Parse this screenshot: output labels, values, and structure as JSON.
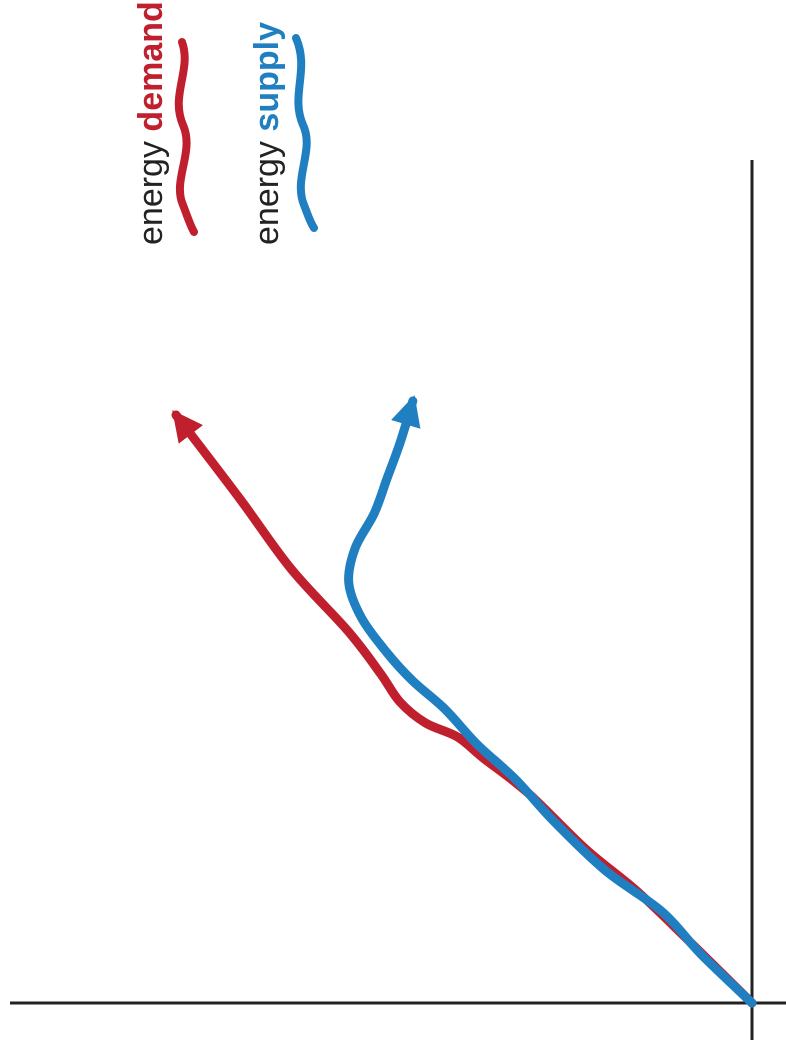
{
  "chart_data": {
    "type": "line",
    "title": "",
    "xlabel": "",
    "ylabel": "",
    "grid": false,
    "legend_placement": "top-left",
    "series": [
      {
        "name_prefix": "energy",
        "name_emphasis": "demand",
        "color": "#c0202e",
        "arrow": true,
        "points": [
          [
            0.0,
            0.0
          ],
          [
            0.09,
            0.1
          ],
          [
            0.16,
            0.18
          ],
          [
            0.22,
            0.26
          ],
          [
            0.3,
            0.35
          ],
          [
            0.35,
            0.42
          ],
          [
            0.38,
            0.46
          ],
          [
            0.4,
            0.51
          ],
          [
            0.43,
            0.55
          ],
          [
            0.47,
            0.58
          ],
          [
            0.53,
            0.63
          ],
          [
            0.62,
            0.72
          ],
          [
            0.72,
            0.8
          ],
          [
            0.84,
            0.9
          ]
        ]
      },
      {
        "name_prefix": "energy",
        "name_emphasis": "supply",
        "color": "#1f7fc0",
        "arrow": true,
        "points": [
          [
            0.0,
            0.0
          ],
          [
            0.07,
            0.08
          ],
          [
            0.13,
            0.14
          ],
          [
            0.19,
            0.23
          ],
          [
            0.26,
            0.31
          ],
          [
            0.32,
            0.37
          ],
          [
            0.37,
            0.43
          ],
          [
            0.42,
            0.48
          ],
          [
            0.46,
            0.53
          ],
          [
            0.5,
            0.57
          ],
          [
            0.55,
            0.61
          ],
          [
            0.6,
            0.63
          ],
          [
            0.65,
            0.62
          ],
          [
            0.7,
            0.59
          ],
          [
            0.75,
            0.57
          ],
          [
            0.8,
            0.55
          ],
          [
            0.86,
            0.53
          ]
        ]
      }
    ]
  }
}
